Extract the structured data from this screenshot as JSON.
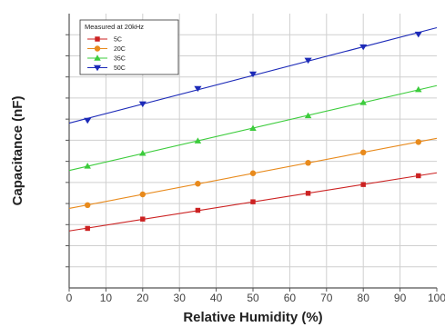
{
  "chart_data": {
    "type": "line",
    "xlabel": "Relative Humidity  (%)",
    "ylabel": "Capacitance  (nF)",
    "xlim": [
      0,
      100
    ],
    "xticks": [
      "0",
      "10",
      "20",
      "30",
      "40",
      "50",
      "60",
      "70",
      "80",
      "90",
      "100"
    ],
    "ylim": [
      0,
      100
    ],
    "grid": true,
    "legend": {
      "title": "Measured at 20kHz",
      "placement": "top-left"
    },
    "x": [
      5,
      20,
      35,
      50,
      65,
      80,
      95
    ],
    "series": [
      {
        "name": "5C",
        "color": "#cc2222",
        "marker": "square",
        "values": [
          21.7,
          25.1,
          28.3,
          31.4,
          34.5,
          37.7,
          40.9
        ]
      },
      {
        "name": "20C",
        "color": "#e88a1c",
        "marker": "circle",
        "values": [
          30.2,
          34.1,
          38.0,
          41.8,
          45.6,
          49.4,
          53.2
        ]
      },
      {
        "name": "35C",
        "color": "#3ccc3c",
        "marker": "triangle-up",
        "values": [
          44.4,
          49.1,
          53.6,
          58.2,
          62.8,
          67.6,
          72.3
        ]
      },
      {
        "name": "50C",
        "color": "#1c2ab8",
        "marker": "triangle-down",
        "values": [
          61.1,
          67.1,
          72.7,
          78.0,
          83.0,
          87.9,
          92.5
        ]
      }
    ]
  }
}
